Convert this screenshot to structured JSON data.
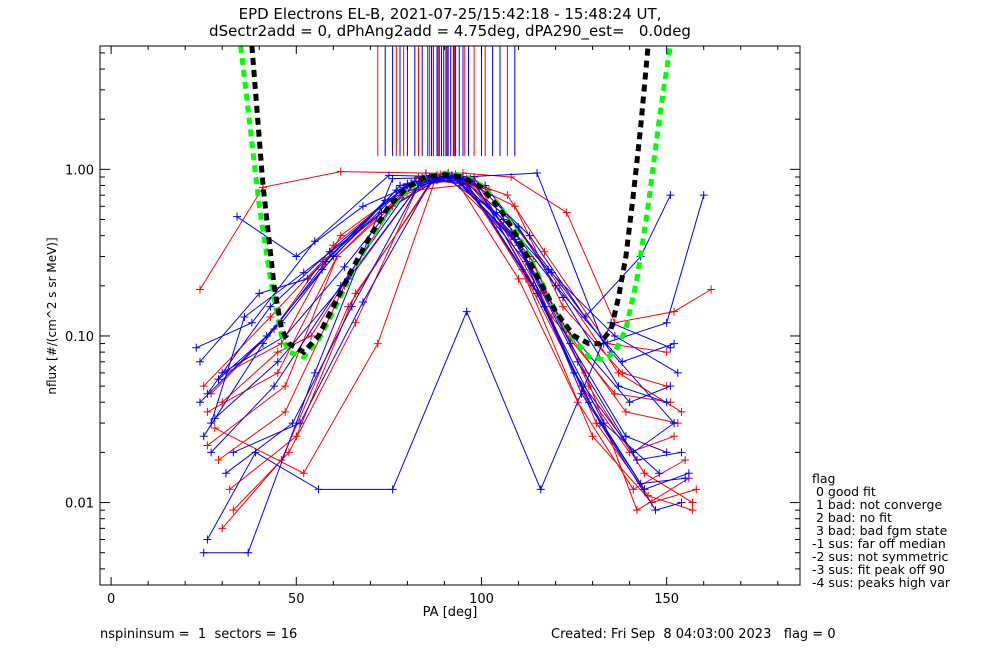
{
  "title": {
    "line1": "EPD Electrons EL-B, 2021-07-25/15:42:18 - 15:48:24 UT,",
    "line2": "dSectr2add = 0, dPhAng2add = 4.75deg, dPA290_est=   0.0deg"
  },
  "footer": {
    "left": "nspininsum =  1  sectors = 16",
    "right": "Created: Fri Sep  8 04:03:00 2023   flag = 0"
  },
  "legend": {
    "title": "flag",
    "items": [
      " 0 good fit",
      " 1 bad: not converge",
      " 2 bad: no fit",
      " 3 bad: bad fgm state",
      "-1 sus: far off median",
      "-2 sus: not symmetric",
      "-3 sus: fit peak off 90",
      "-4 sus: peaks high var"
    ]
  },
  "chart_data": {
    "type": "line",
    "xlabel": "PA [deg]",
    "ylabel": "nflux [#/(cm^2 s sr MeV)]",
    "xlim": [
      -3,
      186
    ],
    "ylim": [
      0.0032,
      5.5
    ],
    "yscale": "log",
    "xticks": [
      0,
      50,
      100,
      150
    ],
    "yticks": [
      0.01,
      0.1,
      1.0
    ],
    "ytick_labels": [
      "0.01",
      "0.10",
      "1.00"
    ],
    "colors": {
      "red": "#ff0000",
      "blue": "#0000ff",
      "green": "#00ff00",
      "black": "#000000"
    },
    "series": [
      {
        "color": "red",
        "x": [
          24,
          41,
          62,
          85,
          95,
          108,
          123,
          136,
          152,
          162
        ],
        "y": [
          0.19,
          0.78,
          0.97,
          0.95,
          0.95,
          0.9,
          0.55,
          0.12,
          0.14,
          0.19
        ]
      },
      {
        "color": "red",
        "x": [
          26,
          45,
          61,
          84,
          95,
          111,
          127,
          140,
          152
        ],
        "y": [
          0.035,
          0.06,
          0.3,
          0.88,
          0.85,
          0.25,
          0.05,
          0.02,
          0.025
        ]
      },
      {
        "color": "red",
        "x": [
          29,
          47,
          63,
          82,
          94,
          110,
          126,
          141,
          155
        ],
        "y": [
          0.018,
          0.035,
          0.2,
          0.75,
          0.8,
          0.22,
          0.04,
          0.012,
          0.018
        ]
      },
      {
        "color": "red",
        "x": [
          30,
          46,
          64,
          86,
          96,
          113,
          128,
          142,
          156
        ],
        "y": [
          0.007,
          0.018,
          0.15,
          0.82,
          0.88,
          0.3,
          0.06,
          0.009,
          0.014
        ]
      },
      {
        "color": "red",
        "x": [
          27,
          44,
          60,
          80,
          92,
          108,
          124,
          139,
          153
        ],
        "y": [
          0.045,
          0.11,
          0.35,
          0.8,
          0.92,
          0.4,
          0.1,
          0.035,
          0.03
        ]
      },
      {
        "color": "red",
        "x": [
          32,
          50,
          66,
          87,
          97,
          114,
          129,
          144,
          157
        ],
        "y": [
          0.012,
          0.025,
          0.18,
          0.86,
          0.8,
          0.28,
          0.05,
          0.015,
          0.01
        ]
      },
      {
        "color": "red",
        "x": [
          28,
          52,
          72,
          88,
          98,
          116,
          131,
          145,
          157
        ],
        "y": [
          0.028,
          0.015,
          0.09,
          0.93,
          0.9,
          0.18,
          0.03,
          0.011,
          0.009
        ]
      },
      {
        "color": "red",
        "x": [
          31,
          46,
          62,
          82,
          93,
          109,
          122,
          138,
          150
        ],
        "y": [
          0.06,
          0.09,
          0.4,
          0.85,
          0.9,
          0.6,
          0.15,
          0.06,
          0.05
        ]
      },
      {
        "color": "red",
        "x": [
          25,
          43,
          57,
          79,
          91,
          105,
          119,
          136,
          151
        ],
        "y": [
          0.05,
          0.13,
          0.28,
          0.7,
          0.9,
          0.45,
          0.13,
          0.045,
          0.04
        ]
      },
      {
        "color": "red",
        "x": [
          33,
          48,
          66,
          84,
          96,
          112,
          130,
          146,
          158
        ],
        "y": [
          0.009,
          0.02,
          0.12,
          0.9,
          0.82,
          0.22,
          0.025,
          0.01,
          0.012
        ]
      },
      {
        "color": "red",
        "x": [
          26,
          47,
          61,
          83,
          94,
          107,
          117,
          134,
          150
        ],
        "y": [
          0.022,
          0.05,
          0.3,
          0.9,
          0.88,
          0.7,
          0.32,
          0.09,
          0.08
        ]
      },
      {
        "color": "red",
        "x": [
          30,
          45,
          54,
          76,
          89,
          102,
          121,
          137,
          154
        ],
        "y": [
          0.04,
          0.08,
          0.1,
          0.6,
          0.93,
          0.75,
          0.2,
          0.06,
          0.035
        ]
      },
      {
        "color": "blue",
        "x": [
          23,
          38,
          55,
          75,
          95,
          115,
          133,
          150,
          160
        ],
        "y": [
          0.085,
          0.12,
          0.37,
          0.92,
          0.9,
          0.95,
          0.09,
          0.12,
          0.7
        ]
      },
      {
        "color": "blue",
        "x": [
          26,
          39,
          56,
          76,
          96,
          116,
          135,
          151
        ],
        "y": [
          0.006,
          0.02,
          0.012,
          0.012,
          0.14,
          0.012,
          0.12,
          0.085
        ]
      },
      {
        "color": "blue",
        "x": [
          34,
          50,
          68,
          86,
          97,
          113,
          128,
          143,
          151
        ],
        "y": [
          0.52,
          0.3,
          0.6,
          0.9,
          0.88,
          0.4,
          0.13,
          0.3,
          0.7
        ]
      },
      {
        "color": "blue",
        "x": [
          24,
          42,
          57,
          78,
          92,
          110,
          125,
          141,
          152
        ],
        "y": [
          0.04,
          0.1,
          0.25,
          0.8,
          0.92,
          0.35,
          0.06,
          0.02,
          0.03
        ]
      },
      {
        "color": "blue",
        "x": [
          27,
          44,
          62,
          82,
          94,
          112,
          127,
          143,
          155
        ],
        "y": [
          0.02,
          0.05,
          0.2,
          0.85,
          0.86,
          0.28,
          0.045,
          0.013,
          0.014
        ]
      },
      {
        "color": "blue",
        "x": [
          25,
          37,
          55,
          76,
          95,
          115,
          132,
          147,
          154
        ],
        "y": [
          0.005,
          0.005,
          0.06,
          0.88,
          0.9,
          0.18,
          0.03,
          0.009,
          0.01
        ]
      },
      {
        "color": "blue",
        "x": [
          29,
          46,
          60,
          80,
          91,
          106,
          120,
          138,
          152
        ],
        "y": [
          0.055,
          0.12,
          0.3,
          0.82,
          0.95,
          0.5,
          0.2,
          0.07,
          0.09
        ]
      },
      {
        "color": "blue",
        "x": [
          24,
          40,
          53,
          74,
          90,
          104,
          118,
          136,
          153
        ],
        "y": [
          0.07,
          0.18,
          0.22,
          0.65,
          0.9,
          0.55,
          0.25,
          0.1,
          0.06
        ]
      },
      {
        "color": "blue",
        "x": [
          28,
          45,
          64,
          85,
          97,
          111,
          124,
          139,
          150
        ],
        "y": [
          0.032,
          0.07,
          0.22,
          0.92,
          0.87,
          0.32,
          0.09,
          0.025,
          0.02
        ]
      },
      {
        "color": "blue",
        "x": [
          31,
          49,
          65,
          83,
          95,
          114,
          129,
          144,
          156
        ],
        "y": [
          0.015,
          0.03,
          0.15,
          0.8,
          0.9,
          0.2,
          0.04,
          0.012,
          0.015
        ]
      },
      {
        "color": "blue",
        "x": [
          26,
          43,
          59,
          79,
          93,
          108,
          123,
          140,
          151
        ],
        "y": [
          0.045,
          0.15,
          0.32,
          0.78,
          0.93,
          0.42,
          0.11,
          0.04,
          0.05
        ]
      },
      {
        "color": "blue",
        "x": [
          33,
          51,
          68,
          87,
          98,
          117,
          133,
          148
        ],
        "y": [
          0.02,
          0.03,
          0.16,
          0.9,
          0.85,
          0.15,
          0.03,
          0.015
        ]
      },
      {
        "color": "blue",
        "x": [
          25,
          41,
          58,
          77,
          92,
          109,
          126,
          142,
          154
        ],
        "y": [
          0.025,
          0.09,
          0.28,
          0.75,
          0.91,
          0.38,
          0.07,
          0.018,
          0.02
        ]
      },
      {
        "color": "blue",
        "x": [
          30,
          47,
          63,
          81,
          94,
          110,
          122,
          137,
          150
        ],
        "y": [
          0.06,
          0.1,
          0.26,
          0.83,
          0.9,
          0.45,
          0.17,
          0.05,
          0.04
        ]
      },
      {
        "color": "blue",
        "x": [
          27,
          36,
          52,
          73,
          88,
          101,
          119,
          135,
          152
        ],
        "y": [
          0.03,
          0.13,
          0.24,
          0.55,
          0.86,
          0.8,
          0.24,
          0.08,
          0.03
        ]
      }
    ],
    "fit_curves": [
      {
        "color": "green",
        "x": [
          35,
          40,
          43,
          46,
          48,
          52,
          56,
          60,
          65,
          70,
          75,
          80,
          85,
          90,
          95,
          100,
          105,
          110,
          115,
          120,
          125,
          129,
          133,
          136,
          139,
          142,
          145,
          148,
          150,
          151
        ],
        "y": [
          5.5,
          0.6,
          0.22,
          0.1,
          0.08,
          0.075,
          0.095,
          0.14,
          0.24,
          0.38,
          0.57,
          0.76,
          0.9,
          0.95,
          0.92,
          0.8,
          0.6,
          0.4,
          0.24,
          0.14,
          0.095,
          0.075,
          0.072,
          0.08,
          0.11,
          0.22,
          0.6,
          2.0,
          4.0,
          5.5
        ]
      },
      {
        "color": "black",
        "x": [
          38,
          41,
          44,
          46,
          48,
          52,
          56,
          60,
          65,
          70,
          75,
          80,
          85,
          90,
          95,
          100,
          105,
          110,
          115,
          120,
          125,
          129,
          132,
          135,
          137,
          139,
          141,
          143,
          145
        ],
        "y": [
          5.5,
          0.8,
          0.2,
          0.11,
          0.09,
          0.08,
          0.1,
          0.15,
          0.25,
          0.4,
          0.6,
          0.78,
          0.9,
          0.93,
          0.9,
          0.78,
          0.58,
          0.38,
          0.23,
          0.14,
          0.1,
          0.09,
          0.09,
          0.11,
          0.17,
          0.3,
          0.7,
          1.8,
          5.5
        ]
      }
    ],
    "spikes": {
      "bottom": 1.2,
      "blue_x": [
        74,
        76,
        78,
        80,
        82,
        84,
        85.5,
        86.5,
        87,
        88,
        88.6,
        89.2,
        89.8,
        90.4,
        91,
        91.7,
        92.4,
        93,
        94,
        95,
        96.5,
        100,
        103,
        105,
        109
      ],
      "red_x": [
        72,
        77,
        79,
        83,
        86,
        88.3,
        90.7,
        92.7,
        95.5,
        98,
        101,
        107
      ]
    }
  }
}
